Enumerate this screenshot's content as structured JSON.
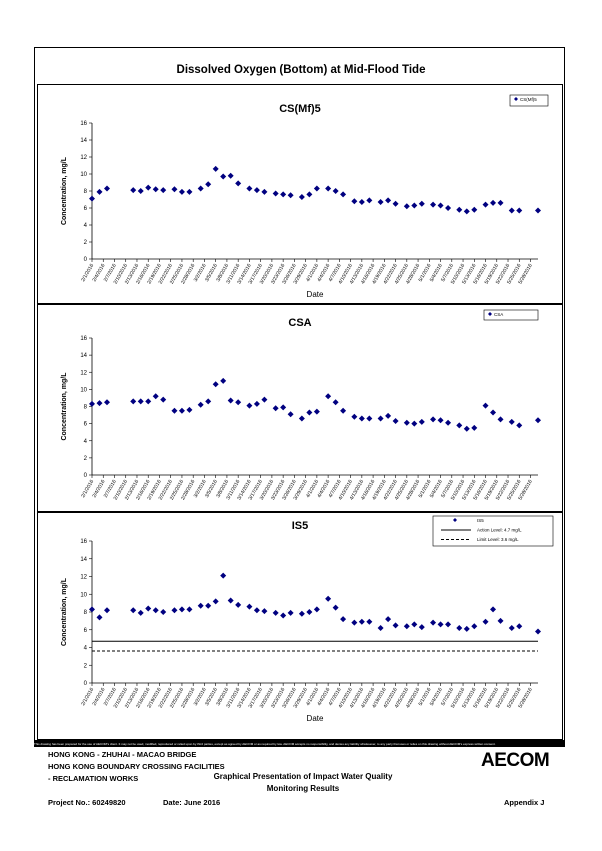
{
  "page": {
    "title": "Dissolved Oxygen (Bottom) at Mid-Flood Tide",
    "disclaimer": "This drawing has been prepared for the use of AECOM's client. It may not be used, modified, reproduced or relied upon by third parties, except as agreed by AECOM or as required by law. AECOM accepts no responsibility, and denies any liability whatsoever, to any party that uses or relies on this drawing without AECOM's express written consent."
  },
  "footer": {
    "line1": "HONG KONG - ZHUHAI - MACAO BRIDGE",
    "line2": "HONG KONG BOUNDARY CROSSING FACILITIES",
    "line3": "- RECLAMATION WORKS",
    "center1": "Graphical Presentation of Impact Water Quality",
    "center2": "Monitoring Results",
    "project": "Project No.: 60249820",
    "date": "Date: June 2016",
    "appendix": "Appendix J",
    "logo": "AECOM"
  },
  "chart_data": [
    {
      "type": "scatter",
      "title": "CS(Mf)5",
      "xlabel": "Date",
      "ylabel": "Concentration, mg/L",
      "ylim": [
        0,
        16
      ],
      "yticks": [
        0,
        2,
        4,
        6,
        8,
        10,
        12,
        14,
        16
      ],
      "xticks": [
        "2/1/2016",
        "2/4/2016",
        "2/7/2016",
        "2/10/2016",
        "2/13/2016",
        "2/16/2016",
        "2/19/2016",
        "2/22/2016",
        "2/25/2016",
        "2/28/2016",
        "3/2/2016",
        "3/5/2016",
        "3/8/2016",
        "3/11/2016",
        "3/14/2016",
        "3/17/2016",
        "3/20/2016",
        "3/23/2016",
        "3/26/2016",
        "3/29/2016",
        "4/1/2016",
        "4/4/2016",
        "4/7/2016",
        "4/10/2016",
        "4/13/2016",
        "4/16/2016",
        "4/19/2016",
        "4/22/2016",
        "4/25/2016",
        "4/28/2016",
        "5/1/2016",
        "5/4/2016",
        "5/7/2016",
        "5/10/2016",
        "5/13/2016",
        "5/16/2016",
        "5/19/2016",
        "5/22/2016",
        "5/25/2016",
        "5/28/2016"
      ],
      "grid": false,
      "legend_position": "top-right",
      "series": [
        {
          "name": "CS(Mf)5",
          "color": "#000080",
          "x": [
            "2/1/2016",
            "2/3/2016",
            "2/5/2016",
            "2/12/2016",
            "2/14/2016",
            "2/16/2016",
            "2/18/2016",
            "2/20/2016",
            "2/23/2016",
            "2/25/2016",
            "2/27/2016",
            "3/1/2016",
            "3/3/2016",
            "3/5/2016",
            "3/7/2016",
            "3/9/2016",
            "3/11/2016",
            "3/14/2016",
            "3/16/2016",
            "3/18/2016",
            "3/21/2016",
            "3/23/2016",
            "3/25/2016",
            "3/28/2016",
            "3/30/2016",
            "4/1/2016",
            "4/4/2016",
            "4/6/2016",
            "4/8/2016",
            "4/11/2016",
            "4/13/2016",
            "4/15/2016",
            "4/18/2016",
            "4/20/2016",
            "4/22/2016",
            "4/25/2016",
            "4/27/2016",
            "4/29/2016",
            "5/2/2016",
            "5/4/2016",
            "5/6/2016",
            "5/9/2016",
            "5/11/2016",
            "5/13/2016",
            "5/16/2016",
            "5/18/2016",
            "5/20/2016",
            "5/23/2016",
            "5/25/2016",
            "5/30/2016"
          ],
          "y": [
            7.1,
            7.9,
            8.3,
            8.1,
            8.0,
            8.4,
            8.2,
            8.1,
            8.2,
            7.9,
            7.9,
            8.3,
            8.8,
            10.6,
            9.7,
            9.8,
            8.9,
            8.3,
            8.1,
            7.9,
            7.7,
            7.6,
            7.5,
            7.3,
            7.6,
            8.3,
            8.3,
            8.0,
            7.6,
            6.8,
            6.7,
            6.9,
            6.7,
            6.9,
            6.5,
            6.2,
            6.3,
            6.5,
            6.4,
            6.3,
            6.0,
            5.8,
            5.6,
            5.8,
            6.4,
            6.6,
            6.6,
            5.7,
            5.7,
            5.7
          ]
        }
      ]
    },
    {
      "type": "scatter",
      "title": "CSA",
      "xlabel": "",
      "ylabel": "Concentration, mg/L",
      "ylim": [
        0,
        16
      ],
      "yticks": [
        0,
        2,
        4,
        6,
        8,
        10,
        12,
        14,
        16
      ],
      "xticks": [
        "2/1/2016",
        "2/4/2016",
        "2/7/2016",
        "2/10/2016",
        "2/13/2016",
        "2/16/2016",
        "2/19/2016",
        "2/22/2016",
        "2/25/2016",
        "2/28/2016",
        "3/2/2016",
        "3/5/2016",
        "3/8/2016",
        "3/11/2016",
        "3/14/2016",
        "3/17/2016",
        "3/20/2016",
        "3/23/2016",
        "3/26/2016",
        "3/29/2016",
        "4/1/2016",
        "4/4/2016",
        "4/7/2016",
        "4/10/2016",
        "4/13/2016",
        "4/16/2016",
        "4/19/2016",
        "4/22/2016",
        "4/25/2016",
        "4/28/2016",
        "5/1/2016",
        "5/4/2016",
        "5/7/2016",
        "5/10/2016",
        "5/13/2016",
        "5/16/2016",
        "5/19/2016",
        "5/22/2016",
        "5/25/2016",
        "5/28/2016"
      ],
      "grid": false,
      "legend_position": "top-right",
      "series": [
        {
          "name": "CSA",
          "color": "#000080",
          "x": [
            "2/1/2016",
            "2/3/2016",
            "2/5/2016",
            "2/12/2016",
            "2/14/2016",
            "2/16/2016",
            "2/18/2016",
            "2/20/2016",
            "2/23/2016",
            "2/25/2016",
            "2/27/2016",
            "3/1/2016",
            "3/3/2016",
            "3/5/2016",
            "3/7/2016",
            "3/9/2016",
            "3/11/2016",
            "3/14/2016",
            "3/16/2016",
            "3/18/2016",
            "3/21/2016",
            "3/23/2016",
            "3/25/2016",
            "3/28/2016",
            "3/30/2016",
            "4/1/2016",
            "4/4/2016",
            "4/6/2016",
            "4/8/2016",
            "4/11/2016",
            "4/13/2016",
            "4/15/2016",
            "4/18/2016",
            "4/20/2016",
            "4/22/2016",
            "4/25/2016",
            "4/27/2016",
            "4/29/2016",
            "5/2/2016",
            "5/4/2016",
            "5/6/2016",
            "5/9/2016",
            "5/11/2016",
            "5/13/2016",
            "5/16/2016",
            "5/18/2016",
            "5/20/2016",
            "5/23/2016",
            "5/25/2016",
            "5/30/2016"
          ],
          "y": [
            8.3,
            8.4,
            8.5,
            8.6,
            8.6,
            8.6,
            9.2,
            8.8,
            7.5,
            7.5,
            7.6,
            8.2,
            8.6,
            10.6,
            11.0,
            8.7,
            8.5,
            8.1,
            8.3,
            8.8,
            7.8,
            7.9,
            7.1,
            6.6,
            7.3,
            7.4,
            9.2,
            8.5,
            7.5,
            6.8,
            6.6,
            6.6,
            6.6,
            6.9,
            6.3,
            6.1,
            6.0,
            6.2,
            6.5,
            6.4,
            6.1,
            5.8,
            5.4,
            5.5,
            8.1,
            7.3,
            6.5,
            6.2,
            5.8,
            6.4
          ]
        }
      ]
    },
    {
      "type": "scatter",
      "title": "IS5",
      "xlabel": "Date",
      "ylabel": "Concentration, mg/L",
      "ylim": [
        0,
        16
      ],
      "yticks": [
        0,
        2,
        4,
        6,
        8,
        10,
        12,
        14,
        16
      ],
      "xticks": [
        "2/1/2016",
        "2/4/2016",
        "2/7/2016",
        "2/10/2016",
        "2/13/2016",
        "2/16/2016",
        "2/19/2016",
        "2/22/2016",
        "2/25/2016",
        "2/28/2016",
        "3/2/2016",
        "3/5/2016",
        "3/8/2016",
        "3/11/2016",
        "3/14/2016",
        "3/17/2016",
        "3/20/2016",
        "3/23/2016",
        "3/26/2016",
        "3/29/2016",
        "4/1/2016",
        "4/4/2016",
        "4/7/2016",
        "4/10/2016",
        "4/13/2016",
        "4/16/2016",
        "4/19/2016",
        "4/22/2016",
        "4/25/2016",
        "4/28/2016",
        "5/1/2016",
        "5/4/2016",
        "5/7/2016",
        "5/10/2016",
        "5/13/2016",
        "5/16/2016",
        "5/19/2016",
        "5/22/2016",
        "5/25/2016",
        "5/28/2016"
      ],
      "grid": false,
      "legend_position": "top-right",
      "series": [
        {
          "name": "IS5",
          "color": "#000080",
          "x": [
            "2/1/2016",
            "2/3/2016",
            "2/5/2016",
            "2/12/2016",
            "2/14/2016",
            "2/16/2016",
            "2/18/2016",
            "2/20/2016",
            "2/23/2016",
            "2/25/2016",
            "2/27/2016",
            "3/1/2016",
            "3/3/2016",
            "3/5/2016",
            "3/7/2016",
            "3/9/2016",
            "3/11/2016",
            "3/14/2016",
            "3/16/2016",
            "3/18/2016",
            "3/21/2016",
            "3/23/2016",
            "3/25/2016",
            "3/28/2016",
            "3/30/2016",
            "4/1/2016",
            "4/4/2016",
            "4/6/2016",
            "4/8/2016",
            "4/11/2016",
            "4/13/2016",
            "4/15/2016",
            "4/18/2016",
            "4/20/2016",
            "4/22/2016",
            "4/25/2016",
            "4/27/2016",
            "4/29/2016",
            "5/2/2016",
            "5/4/2016",
            "5/6/2016",
            "5/9/2016",
            "5/11/2016",
            "5/13/2016",
            "5/16/2016",
            "5/18/2016",
            "5/20/2016",
            "5/23/2016",
            "5/25/2016",
            "5/30/2016"
          ],
          "y": [
            8.3,
            7.4,
            8.2,
            8.2,
            7.9,
            8.4,
            8.2,
            8.0,
            8.2,
            8.3,
            8.3,
            8.7,
            8.7,
            9.2,
            12.1,
            9.3,
            8.8,
            8.6,
            8.2,
            8.1,
            7.9,
            7.6,
            7.9,
            7.8,
            8.0,
            8.3,
            9.5,
            8.5,
            7.2,
            6.8,
            6.9,
            6.9,
            6.2,
            7.2,
            6.5,
            6.4,
            6.6,
            6.3,
            6.8,
            6.6,
            6.6,
            6.2,
            6.1,
            6.4,
            6.9,
            8.3,
            7.0,
            6.2,
            6.4,
            5.8
          ]
        },
        {
          "name": "Action Level: 4.7 mg/L",
          "kind": "line",
          "style": "solid",
          "value": 4.7,
          "color": "#000000"
        },
        {
          "name": "Limit Level: 3.6 mg/L",
          "kind": "line",
          "style": "dashed",
          "value": 3.6,
          "color": "#000000"
        }
      ]
    }
  ]
}
